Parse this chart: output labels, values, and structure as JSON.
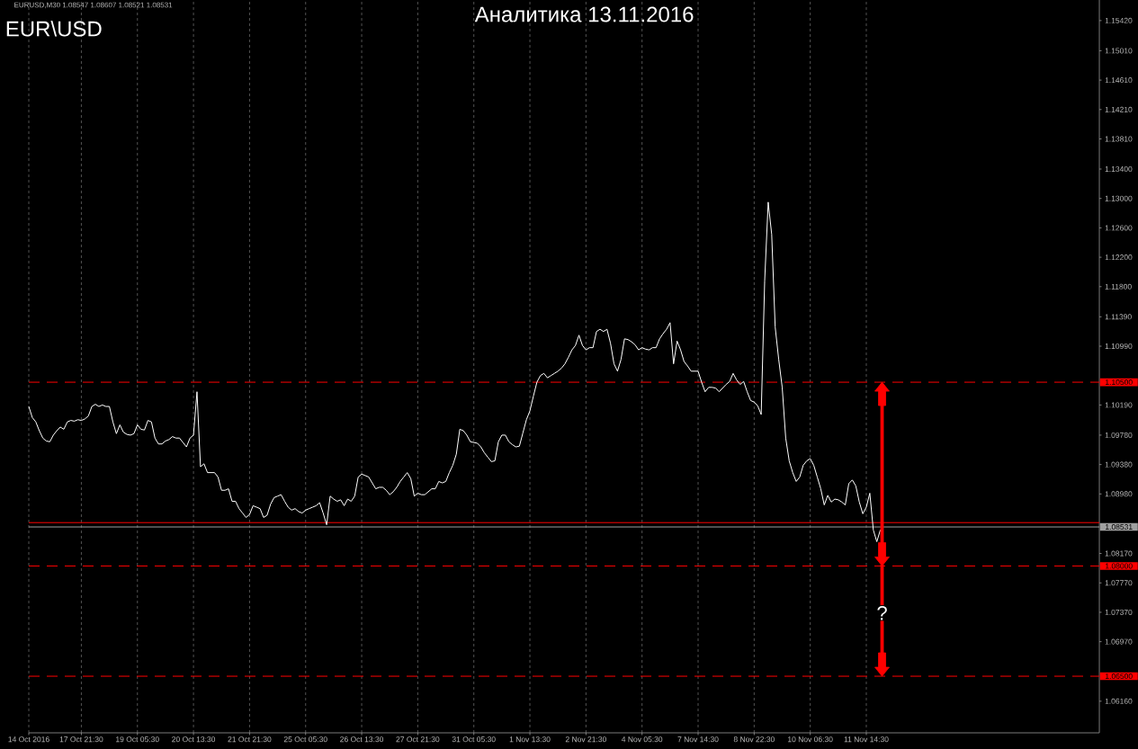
{
  "chart_data": {
    "type": "line",
    "title": "Аналитика 13.11.2016",
    "subtitle": "EUR\\USD",
    "annotations": [
      "EURUSD,M30 1.08547 1.08607 1.08521 1.08531",
      {
        "text": "?",
        "y": 1.0736
      }
    ],
    "categories": [
      "14 Oct 2016",
      null,
      null,
      null,
      null,
      null,
      null,
      null,
      null,
      null,
      null,
      null,
      null,
      null,
      null,
      "17 Oct 21:30",
      null,
      null,
      null,
      null,
      null,
      null,
      null,
      null,
      null,
      null,
      null,
      null,
      null,
      null,
      null,
      "19 Oct 05:30",
      null,
      null,
      null,
      null,
      null,
      null,
      null,
      null,
      null,
      null,
      null,
      null,
      null,
      null,
      null,
      "20 Oct 13:30",
      null,
      null,
      null,
      null,
      null,
      null,
      null,
      null,
      null,
      null,
      null,
      null,
      null,
      null,
      null,
      "21 Oct 21:30",
      null,
      null,
      null,
      null,
      null,
      null,
      null,
      null,
      null,
      null,
      null,
      null,
      null,
      null,
      null,
      "25 Oct 05:30",
      null,
      null,
      null,
      null,
      null,
      null,
      null,
      null,
      null,
      null,
      null,
      null,
      null,
      null,
      null,
      "26 Oct 13:30",
      null,
      null,
      null,
      null,
      null,
      null,
      null,
      null,
      null,
      null,
      null,
      null,
      null,
      null,
      null,
      "27 Oct 21:30",
      null,
      null,
      null,
      null,
      null,
      null,
      null,
      null,
      null,
      null,
      null,
      null,
      null,
      null,
      null,
      "31 Oct 05:30",
      null,
      null,
      null,
      null,
      null,
      null,
      null,
      null,
      null,
      null,
      null,
      null,
      null,
      null,
      null,
      "1 Nov 13:30",
      null,
      null,
      null,
      null,
      null,
      null,
      null,
      null,
      null,
      null,
      null,
      null,
      null,
      null,
      null,
      "2 Nov 21:30",
      null,
      null,
      null,
      null,
      null,
      null,
      null,
      null,
      null,
      null,
      null,
      null,
      null,
      null,
      null,
      "4 Nov 05:30",
      null,
      null,
      null,
      null,
      null,
      null,
      null,
      null,
      null,
      null,
      null,
      null,
      null,
      null,
      null,
      "7 Nov 14:30",
      null,
      null,
      null,
      null,
      null,
      null,
      null,
      null,
      null,
      null,
      null,
      null,
      null,
      null,
      null,
      "8 Nov 22:30",
      null,
      null,
      null,
      null,
      null,
      null,
      null,
      null,
      null,
      null,
      null,
      null,
      null,
      null,
      null,
      "10 Nov 06:30",
      null,
      null,
      null,
      null,
      null,
      null,
      null,
      null,
      null,
      null,
      null,
      null,
      null,
      null,
      null,
      "11 Nov 14:30",
      null,
      null,
      null,
      null,
      null,
      null,
      null,
      null,
      null,
      null,
      null,
      null,
      null,
      null,
      null,
      null,
      null,
      null,
      null,
      null,
      null,
      null,
      null,
      null,
      null,
      null,
      null,
      null,
      null,
      null,
      null,
      null,
      null,
      null,
      null,
      null,
      null,
      null,
      null,
      null,
      null,
      null,
      null,
      null,
      null,
      null,
      null,
      null,
      null,
      null,
      null,
      null,
      null,
      null,
      null,
      null,
      null,
      null,
      null,
      null,
      null,
      null,
      null,
      null,
      null,
      null
    ],
    "series": [
      {
        "color": "#ffffff",
        "values": [
          1.1017,
          1.1002,
          1.0996,
          1.0984,
          1.0974,
          1.097,
          1.0969,
          1.0978,
          1.0984,
          1.0989,
          1.0986,
          1.0996,
          1.0998,
          1.0997,
          1.0999,
          1.0998,
          1.1,
          1.1004,
          1.1017,
          1.102,
          1.1017,
          1.1019,
          1.1017,
          1.1017,
          1.0996,
          1.098,
          1.0992,
          1.0982,
          1.0979,
          1.0978,
          1.098,
          1.0992,
          1.0986,
          1.0985,
          1.0998,
          1.0996,
          1.0974,
          1.0966,
          1.0966,
          1.097,
          1.0972,
          1.0976,
          1.0974,
          1.0974,
          1.0968,
          1.0962,
          1.0974,
          1.0978,
          1.1037,
          1.0935,
          1.0939,
          1.0927,
          1.0927,
          1.0927,
          1.0921,
          1.0903,
          1.0903,
          1.0905,
          1.0888,
          1.0888,
          1.0878,
          1.0872,
          1.0866,
          1.087,
          1.0882,
          1.088,
          1.0878,
          1.0866,
          1.0869,
          1.0884,
          1.0893,
          1.0895,
          1.0897,
          1.0888,
          1.088,
          1.0876,
          1.0878,
          1.0874,
          1.0872,
          1.0876,
          1.0878,
          1.088,
          1.0882,
          1.0886,
          1.0872,
          1.0856,
          1.0895,
          1.0891,
          1.0888,
          1.089,
          1.0882,
          1.0891,
          1.0888,
          1.0895,
          1.0921,
          1.0925,
          1.0923,
          1.0921,
          1.0913,
          1.0905,
          1.0907,
          1.0907,
          1.0903,
          1.0897,
          1.0901,
          1.0907,
          1.0915,
          1.0921,
          1.0927,
          1.0919,
          1.0895,
          1.0899,
          1.0897,
          1.0897,
          1.0901,
          1.0905,
          1.0905,
          1.0915,
          1.0913,
          1.0915,
          1.0927,
          1.0937,
          1.0952,
          1.0986,
          1.0984,
          1.0978,
          1.0969,
          1.0968,
          1.0967,
          1.0962,
          1.0954,
          1.0948,
          1.0942,
          1.0943,
          1.0969,
          1.0978,
          1.0978,
          1.0969,
          1.0965,
          1.0962,
          1.0963,
          1.0981,
          1.0999,
          1.1011,
          1.1031,
          1.105,
          1.1059,
          1.1062,
          1.1056,
          1.1059,
          1.1062,
          1.1065,
          1.1069,
          1.1075,
          1.1084,
          1.1094,
          1.11,
          1.1114,
          1.11,
          1.1094,
          1.1097,
          1.1097,
          1.1119,
          1.1122,
          1.1119,
          1.1122,
          1.1103,
          1.1075,
          1.1065,
          1.1081,
          1.1109,
          1.1108,
          1.1105,
          1.1101,
          1.1094,
          1.1097,
          1.1095,
          1.1094,
          1.1097,
          1.1097,
          1.1109,
          1.1116,
          1.1122,
          1.1131,
          1.1075,
          1.1106,
          1.1094,
          1.1078,
          1.1072,
          1.1065,
          1.1065,
          1.1065,
          1.105,
          1.1037,
          1.1043,
          1.1043,
          1.1042,
          1.1037,
          1.1042,
          1.1047,
          1.1051,
          1.1062,
          1.1053,
          1.1047,
          1.1051,
          1.1037,
          1.1025,
          1.1023,
          1.1018,
          1.1006,
          1.1188,
          1.1295,
          1.1251,
          1.1125,
          1.1081,
          1.1043,
          1.0974,
          1.0943,
          1.0927,
          1.0915,
          1.0921,
          1.0937,
          1.0943,
          1.0946,
          1.0937,
          1.0921,
          1.0905,
          1.0883,
          1.0896,
          1.0887,
          1.0891,
          1.089,
          1.0887,
          1.0883,
          1.0912,
          1.0917,
          1.0909,
          1.0887,
          1.0871,
          1.088,
          1.0899,
          1.0849,
          1.0833,
          1.0849,
          null,
          null,
          null,
          null,
          null,
          null,
          null,
          null,
          null,
          null,
          null,
          null,
          null,
          null,
          null,
          null,
          null,
          null,
          null,
          null,
          null,
          null,
          null,
          null,
          null,
          null,
          null,
          null,
          null,
          null,
          null,
          null,
          null,
          null,
          null,
          null,
          null,
          null,
          null,
          null,
          null,
          null,
          null,
          null,
          null,
          null,
          null,
          null,
          null,
          null,
          null,
          null,
          null,
          null,
          null,
          null,
          null,
          null,
          null,
          null,
          null,
          null
        ]
      }
    ],
    "ylim": [
      1.0573,
      1.157
    ],
    "yticks": [
      {
        "value": 1.1542,
        "label": "1.15420"
      },
      {
        "value": 1.1501,
        "label": "1.15010"
      },
      {
        "value": 1.1461,
        "label": "1.14610"
      },
      {
        "value": 1.1421,
        "label": "1.14210"
      },
      {
        "value": 1.1381,
        "label": "1.13810"
      },
      {
        "value": 1.134,
        "label": "1.13400"
      },
      {
        "value": 1.13,
        "label": "1.13000"
      },
      {
        "value": 1.126,
        "label": "1.12600"
      },
      {
        "value": 1.122,
        "label": "1.12200"
      },
      {
        "value": 1.118,
        "label": "1.11800"
      },
      {
        "value": 1.1139,
        "label": "1.11390"
      },
      {
        "value": 1.1099,
        "label": "1.10990"
      },
      {
        "value": 1.1019,
        "label": "1.10190"
      },
      {
        "value": 1.0978,
        "label": "1.09780"
      },
      {
        "value": 1.0938,
        "label": "1.09380"
      },
      {
        "value": 1.0898,
        "label": "1.08980"
      },
      {
        "value": 1.0817,
        "label": "1.08170"
      },
      {
        "value": 1.0777,
        "label": "1.07770"
      },
      {
        "value": 1.0737,
        "label": "1.07370"
      },
      {
        "value": 1.0697,
        "label": "1.06970"
      },
      {
        "value": 1.0616,
        "label": "1.06160"
      }
    ],
    "grid": "x",
    "ref_lines": [
      {
        "axis": "y",
        "value": 1.105,
        "label": "1.10500",
        "color": "#ff0000",
        "line_style": "dashed"
      },
      {
        "axis": "y",
        "value": 1.0859,
        "color": "#ff0000",
        "line_style": "solid"
      },
      {
        "axis": "y",
        "value": 1.08531,
        "label": "1.08531",
        "color": "#a0a0a0",
        "line_style": "solid"
      },
      {
        "axis": "y",
        "value": 1.08,
        "label": "1.08000",
        "color": "#ff0000",
        "line_style": "dashed"
      },
      {
        "axis": "y",
        "value": 1.065,
        "label": "1.06500",
        "color": "#ff0000",
        "line_style": "dashed"
      }
    ]
  }
}
